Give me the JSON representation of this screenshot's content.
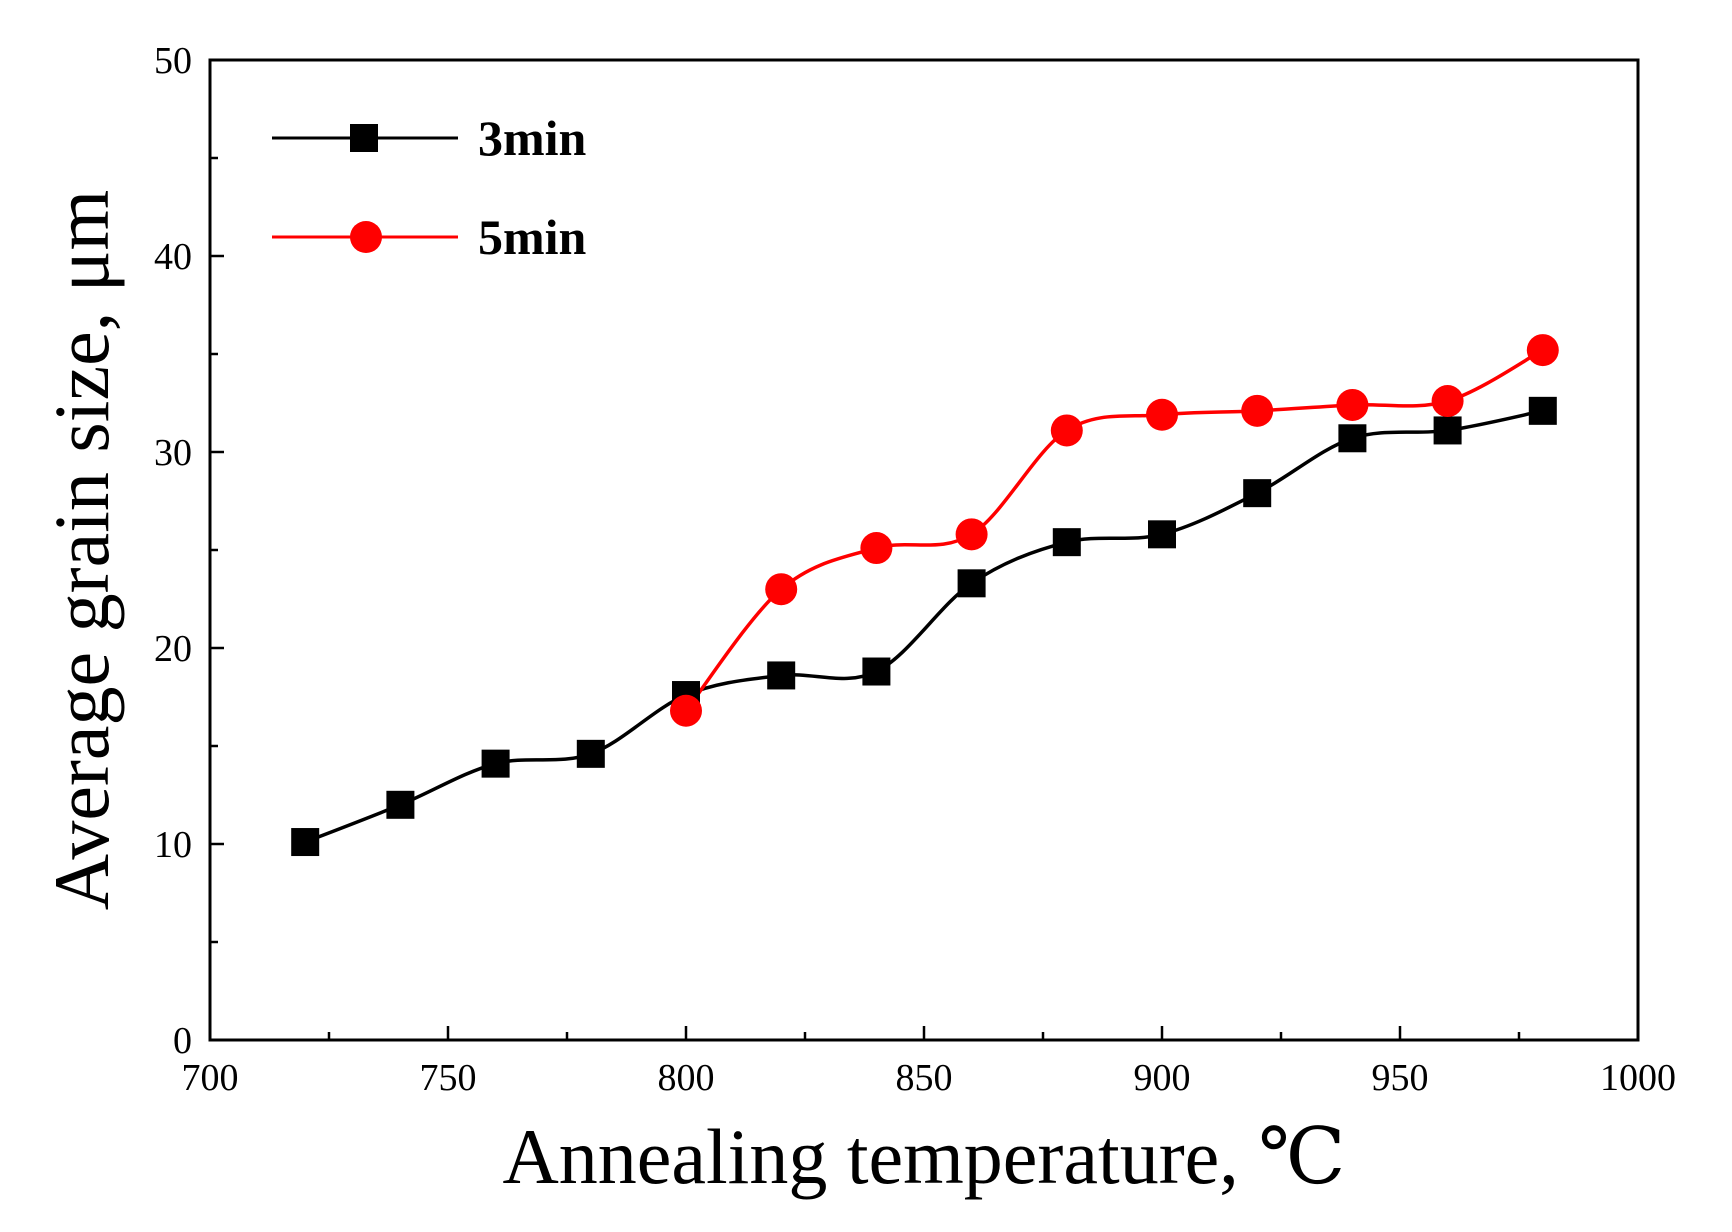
{
  "chart_data": {
    "type": "line",
    "title": "",
    "xlabel": "Annealing temperature, ℃",
    "ylabel": "Average grain size, μm",
    "xlim": [
      700,
      1000
    ],
    "ylim": [
      0,
      50
    ],
    "xticks": [
      700,
      750,
      800,
      850,
      900,
      950,
      1000
    ],
    "yticks": [
      0,
      10,
      20,
      30,
      40,
      50
    ],
    "xtick_labels": [
      "700",
      "750",
      "800",
      "850",
      "900",
      "950",
      "1000"
    ],
    "ytick_labels": [
      "0",
      "10",
      "20",
      "30",
      "40",
      "50"
    ],
    "legend_position": "top-left",
    "grid": false,
    "series": [
      {
        "name": "3min",
        "color": "#000000",
        "marker": "square",
        "x": [
          720,
          740,
          760,
          780,
          800,
          820,
          840,
          860,
          880,
          900,
          920,
          940,
          960,
          980
        ],
        "y": [
          10.1,
          12.0,
          14.1,
          14.6,
          17.6,
          18.6,
          18.8,
          23.3,
          25.4,
          25.8,
          27.9,
          30.7,
          31.1,
          32.1
        ]
      },
      {
        "name": "5min",
        "color": "#ff0000",
        "marker": "circle",
        "x": [
          800,
          820,
          840,
          860,
          880,
          900,
          920,
          940,
          960,
          980
        ],
        "y": [
          16.8,
          23.0,
          25.1,
          25.8,
          31.1,
          31.9,
          32.1,
          32.4,
          32.6,
          35.2
        ]
      }
    ]
  }
}
